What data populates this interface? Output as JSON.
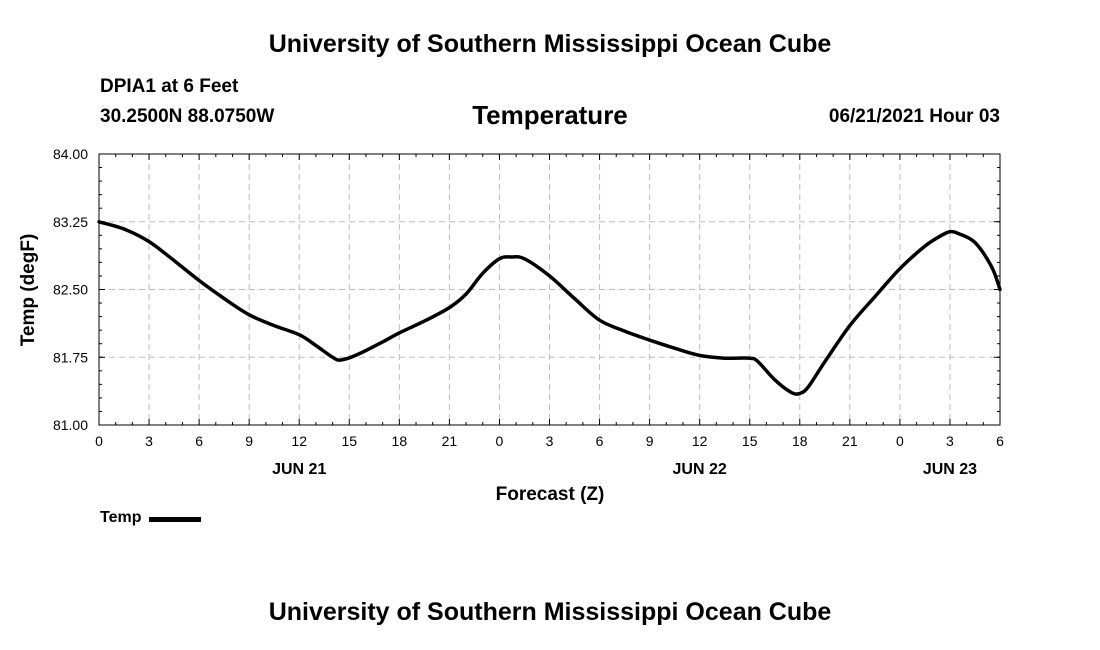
{
  "page": {
    "title": "University of Southern Mississippi Ocean Cube",
    "footer": "University of Southern Mississippi Ocean Cube",
    "station": "DPIA1 at 6 Feet",
    "coordinates": "30.2500N  88.0750W",
    "issued": "06/21/2021 Hour 03"
  },
  "chart_data": {
    "type": "line",
    "title": "Temperature",
    "xlabel": "Forecast (Z)",
    "ylabel": "Temp (degF)",
    "x_unit": "forecast hours from 06/21 00Z",
    "xlim": [
      0,
      54
    ],
    "ylim": [
      81.0,
      84.0
    ],
    "y_ticks": [
      "81.00",
      "81.75",
      "82.50",
      "83.25",
      "84.00"
    ],
    "x_ticks": [
      {
        "x": 0,
        "label": "0"
      },
      {
        "x": 3,
        "label": "3"
      },
      {
        "x": 6,
        "label": "6"
      },
      {
        "x": 9,
        "label": "9"
      },
      {
        "x": 12,
        "label": "12"
      },
      {
        "x": 15,
        "label": "15"
      },
      {
        "x": 18,
        "label": "18"
      },
      {
        "x": 21,
        "label": "21"
      },
      {
        "x": 24,
        "label": "0"
      },
      {
        "x": 27,
        "label": "3"
      },
      {
        "x": 30,
        "label": "6"
      },
      {
        "x": 33,
        "label": "9"
      },
      {
        "x": 36,
        "label": "12"
      },
      {
        "x": 39,
        "label": "15"
      },
      {
        "x": 42,
        "label": "18"
      },
      {
        "x": 45,
        "label": "21"
      },
      {
        "x": 48,
        "label": "0"
      },
      {
        "x": 51,
        "label": "3"
      },
      {
        "x": 54,
        "label": "6"
      }
    ],
    "day_labels": [
      {
        "x": 12,
        "label": "JUN 21"
      },
      {
        "x": 36,
        "label": "JUN 22"
      },
      {
        "x": 51,
        "label": "JUN 23"
      }
    ],
    "grid": true,
    "legend": "bottom-left",
    "series": [
      {
        "name": "Temp",
        "color": "#000000",
        "x": [
          0,
          1.5,
          3,
          4.5,
          6,
          7.5,
          9,
          10.5,
          12,
          13,
          14,
          14.5,
          15.5,
          17,
          18,
          19.5,
          21,
          22,
          23,
          24,
          24.7,
          25.5,
          27,
          28.5,
          30,
          31.5,
          33,
          34.5,
          36,
          37.5,
          39,
          39.5,
          40.5,
          41.5,
          42,
          42.5,
          43.5,
          45,
          46.5,
          48,
          49.5,
          50.5,
          51,
          51.5,
          52.5,
          53.5,
          54
        ],
        "y": [
          83.25,
          83.17,
          83.03,
          82.82,
          82.6,
          82.4,
          82.22,
          82.1,
          82.0,
          81.88,
          81.75,
          81.72,
          81.78,
          81.92,
          82.02,
          82.15,
          82.3,
          82.45,
          82.68,
          82.84,
          82.86,
          82.84,
          82.65,
          82.4,
          82.16,
          82.04,
          81.94,
          81.85,
          81.77,
          81.74,
          81.74,
          81.7,
          81.5,
          81.36,
          81.35,
          81.42,
          81.7,
          82.1,
          82.42,
          82.73,
          82.98,
          83.1,
          83.14,
          83.12,
          83.02,
          82.75,
          82.5
        ]
      }
    ]
  }
}
